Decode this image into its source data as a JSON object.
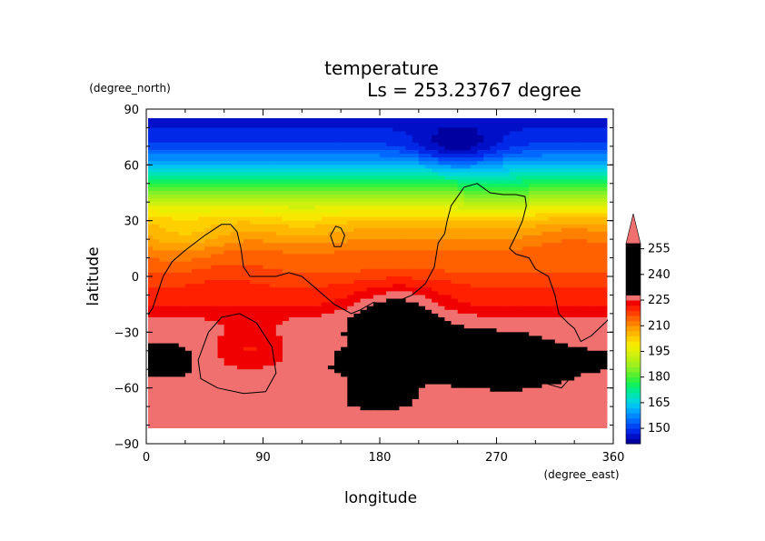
{
  "chart_data": {
    "type": "heatmap",
    "title": "temperature",
    "subtitle": "Ls = 253.23767 degree",
    "xlabel": "longitude",
    "ylabel": "latitude",
    "xunits": "(degree_east)",
    "yunits": "(degree_north)",
    "xlim": [
      0,
      360
    ],
    "ylim": [
      -90,
      90
    ],
    "xticks": [
      0,
      90,
      180,
      270,
      360
    ],
    "xtick_labels": [
      "0",
      "90",
      "180",
      "270",
      "360"
    ],
    "yticks": [
      90,
      60,
      30,
      0,
      -30,
      -60,
      -90
    ],
    "ytick_labels": [
      "90",
      "60",
      "30",
      "0",
      "−30",
      "−60",
      "−90"
    ],
    "data_lat_range": [
      -82,
      86
    ],
    "data_lon_range": [
      0,
      355
    ],
    "colorbar": {
      "levels": [
        141,
        144,
        147,
        150,
        153,
        156,
        159,
        162,
        165,
        168,
        171,
        174,
        177,
        180,
        183,
        186,
        189,
        192,
        195,
        198,
        201,
        204,
        207,
        210,
        213,
        216,
        219,
        222,
        225,
        228,
        231,
        234,
        237,
        240,
        243,
        246,
        249,
        252,
        255,
        258
      ],
      "labels": [
        "255",
        "240",
        "225",
        "210",
        "195",
        "180",
        "165",
        "150"
      ],
      "label_values": [
        255,
        240,
        225,
        210,
        195,
        180,
        165,
        150
      ],
      "extend": "max",
      "colors": [
        "#0000a0",
        "#0010c8",
        "#0028e6",
        "#0048f5",
        "#0068ff",
        "#0088ff",
        "#00a8ff",
        "#00c4f0",
        "#00d8d8",
        "#00e4b4",
        "#00ec8c",
        "#10f060",
        "#30f040",
        "#58f030",
        "#80f028",
        "#a0f020",
        "#b8f010",
        "#d0f010",
        "#e8f000",
        "#f8e800",
        "#ffd000",
        "#ffb800",
        "#ffa000",
        "#ff8000",
        "#ff6000",
        "#ff4000",
        "#ff2000",
        "#f00000",
        "#f07070"
      ]
    },
    "zonal_profile": {
      "lat": [
        86,
        80,
        74,
        70,
        66,
        62,
        58,
        54,
        50,
        46,
        42,
        38,
        34,
        30,
        26,
        22,
        18,
        14,
        10,
        6,
        2,
        -2,
        -6,
        -10,
        -14,
        -18,
        -22,
        -30,
        -40,
        -50,
        -60,
        -70,
        -76,
        -82
      ],
      "value": [
        146,
        147,
        149,
        151,
        155,
        160,
        166,
        172,
        178,
        184,
        190,
        195,
        200,
        204,
        207,
        209,
        211,
        213,
        214,
        215,
        216,
        218,
        219,
        220,
        221,
        223,
        225,
        227,
        228,
        228,
        227,
        227,
        226,
        225
      ]
    },
    "anomalies": [
      {
        "lon": 180,
        "lat": -20,
        "value": 228
      },
      {
        "lon": 200,
        "lat": -15,
        "value": 227
      },
      {
        "lon": 230,
        "lat": -40,
        "value": 233
      },
      {
        "lon": 270,
        "lat": -45,
        "value": 233
      },
      {
        "lon": 300,
        "lat": -50,
        "value": 229
      },
      {
        "lon": 180,
        "lat": -65,
        "value": 229
      },
      {
        "lon": 15,
        "lat": -45,
        "value": 229
      },
      {
        "lon": 120,
        "lat": 28,
        "value": 203
      },
      {
        "lon": 30,
        "lat": 20,
        "value": 205
      },
      {
        "lon": 330,
        "lat": 22,
        "value": 212
      },
      {
        "lon": 60,
        "lat": 5,
        "value": 217
      },
      {
        "lon": 80,
        "lat": -40,
        "value": 222
      },
      {
        "lon": 240,
        "lat": 68,
        "value": 144
      },
      {
        "lon": 270,
        "lat": 45,
        "value": 181
      }
    ],
    "topography_contours": [
      {
        "name": "main",
        "points": [
          [
            0,
            -22
          ],
          [
            5,
            -17
          ],
          [
            13,
            0
          ],
          [
            20,
            8
          ],
          [
            30,
            14
          ],
          [
            45,
            22
          ],
          [
            58,
            28
          ],
          [
            65,
            28
          ],
          [
            70,
            24
          ],
          [
            73,
            15
          ],
          [
            75,
            5
          ],
          [
            80,
            0
          ],
          [
            90,
            0
          ],
          [
            100,
            0
          ],
          [
            110,
            2
          ],
          [
            120,
            0
          ],
          [
            130,
            -6
          ],
          [
            145,
            -15
          ],
          [
            158,
            -20
          ],
          [
            165,
            -18
          ],
          [
            175,
            -14
          ],
          [
            188,
            -15
          ],
          [
            205,
            -10
          ],
          [
            215,
            -4
          ],
          [
            222,
            5
          ],
          [
            225,
            18
          ],
          [
            230,
            23
          ],
          [
            232,
            30
          ],
          [
            235,
            38
          ],
          [
            245,
            48
          ],
          [
            255,
            50
          ],
          [
            265,
            45
          ],
          [
            275,
            44
          ],
          [
            285,
            44
          ],
          [
            292,
            43
          ],
          [
            293,
            38
          ],
          [
            290,
            30
          ],
          [
            285,
            22
          ],
          [
            280,
            15
          ],
          [
            285,
            12
          ],
          [
            295,
            10
          ],
          [
            300,
            4
          ],
          [
            310,
            0
          ],
          [
            315,
            -10
          ],
          [
            318,
            -20
          ],
          [
            325,
            -25
          ],
          [
            330,
            -28
          ],
          [
            335,
            -35
          ],
          [
            343,
            -32
          ],
          [
            355,
            -24
          ],
          [
            360,
            -20
          ]
        ]
      },
      {
        "name": "loop-west",
        "points": [
          [
            40,
            -45
          ],
          [
            48,
            -30
          ],
          [
            58,
            -22
          ],
          [
            72,
            -20
          ],
          [
            85,
            -25
          ],
          [
            97,
            -38
          ],
          [
            100,
            -52
          ],
          [
            92,
            -62
          ],
          [
            75,
            -63
          ],
          [
            55,
            -60
          ],
          [
            42,
            -55
          ],
          [
            40,
            -45
          ]
        ]
      },
      {
        "name": "loop-east",
        "points": [
          [
            303,
            -47
          ],
          [
            309,
            -38
          ],
          [
            318,
            -37
          ],
          [
            325,
            -42
          ],
          [
            329,
            -53
          ],
          [
            320,
            -60
          ],
          [
            310,
            -58
          ],
          [
            303,
            -47
          ]
        ]
      },
      {
        "name": "loop-small",
        "points": [
          [
            142,
            22
          ],
          [
            146,
            27
          ],
          [
            150,
            26
          ],
          [
            153,
            22
          ],
          [
            150,
            16
          ],
          [
            145,
            16
          ],
          [
            142,
            22
          ]
        ]
      }
    ]
  }
}
